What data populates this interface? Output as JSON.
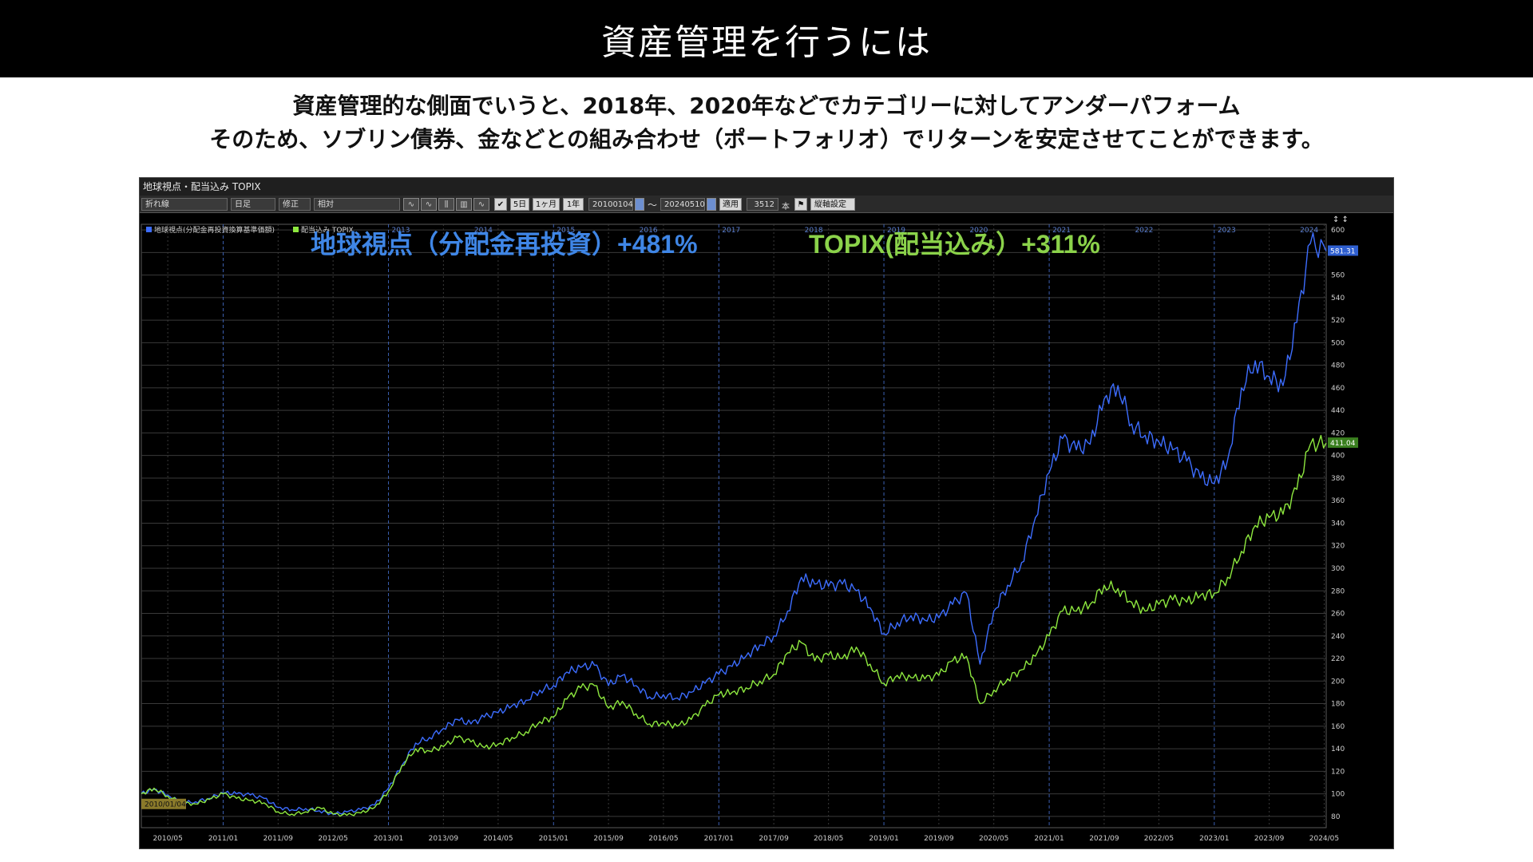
{
  "page": {
    "title": "資産管理を行うには",
    "description_lines": [
      "資産管理的な側面でいうと、2018年、2020年などでカテゴリーに対してアンダーパフォーム",
      "そのため、ソブリン債券、金などとの組み合わせ（ポートフォリオ）でリターンを安定させてことができます。"
    ]
  },
  "window": {
    "title": "地球視点・配当込み TOPIX",
    "toolbar": {
      "chart_style": "折れ線",
      "period_type": "日足",
      "adjust": "修正",
      "scale": "相対",
      "preset_5d": "5日",
      "preset_1m": "1ヶ月",
      "preset_1y": "1年",
      "start_date": "20100104",
      "tilde": "〜",
      "end_date": "20240510",
      "apply": "適用",
      "bar_count": "3512",
      "bar_unit": "本",
      "axis_settings": "縦軸設定"
    },
    "start_marker": "2010/01/04"
  },
  "annotations": {
    "fund_return": "地球視点（分配金再投資）+481%",
    "topix_return": "TOPIX(配当込み）+311%"
  },
  "colors": {
    "fund": "#3d6dff",
    "topix": "#8ee83f",
    "fund_label": "#3f86e6",
    "topix_label": "#8bd24a"
  },
  "chart_data": {
    "type": "line",
    "legend": [
      "地球視点(分配金再投資換算基準価額)",
      "配当込み TOPIX"
    ],
    "legend_position": "top-left",
    "x_range": [
      "2010-01-04",
      "2024-05-10"
    ],
    "y_range": [
      70,
      605
    ],
    "y_ticks": [
      80,
      100,
      120,
      140,
      160,
      180,
      200,
      220,
      240,
      260,
      280,
      300,
      320,
      340,
      360,
      380,
      400,
      420,
      440,
      460,
      480,
      500,
      520,
      540,
      560,
      580,
      600
    ],
    "top_year_ticks": [
      "2013",
      "2014",
      "2015",
      "2016",
      "2017",
      "2018",
      "2019",
      "2020",
      "2021",
      "2022",
      "2023",
      "2024"
    ],
    "bottom_date_ticks": [
      "2010/05",
      "2011/01",
      "2011/09",
      "2012/05",
      "2013/01",
      "2013/09",
      "2014/05",
      "2015/01",
      "2015/09",
      "2016/05",
      "2017/01",
      "2017/09",
      "2018/05",
      "2019/01",
      "2019/09",
      "2020/05",
      "2021/01",
      "2021/09",
      "2022/05",
      "2023/01",
      "2023/09",
      "2024/05"
    ],
    "grid": true,
    "last_values": {
      "fund": "581.31",
      "topix": "411.04"
    },
    "series": [
      {
        "name": "地球視点(分配金再投資換算基準価額)",
        "points": [
          [
            "2010-01-04",
            100
          ],
          [
            "2010-03-01",
            104
          ],
          [
            "2010-05-01",
            99
          ],
          [
            "2010-07-01",
            92
          ],
          [
            "2010-09-01",
            93
          ],
          [
            "2010-11-01",
            96
          ],
          [
            "2011-01-01",
            101
          ],
          [
            "2011-03-01",
            100
          ],
          [
            "2011-05-01",
            99
          ],
          [
            "2011-07-01",
            96
          ],
          [
            "2011-09-01",
            88
          ],
          [
            "2011-11-01",
            86
          ],
          [
            "2012-01-01",
            87
          ],
          [
            "2012-03-01",
            85
          ],
          [
            "2012-05-01",
            82
          ],
          [
            "2012-07-01",
            84
          ],
          [
            "2012-09-01",
            86
          ],
          [
            "2012-11-01",
            90
          ],
          [
            "2013-01-01",
            105
          ],
          [
            "2013-03-01",
            125
          ],
          [
            "2013-05-01",
            145
          ],
          [
            "2013-07-01",
            150
          ],
          [
            "2013-09-01",
            158
          ],
          [
            "2013-11-01",
            166
          ],
          [
            "2014-01-01",
            162
          ],
          [
            "2014-03-01",
            168
          ],
          [
            "2014-05-01",
            172
          ],
          [
            "2014-07-01",
            178
          ],
          [
            "2014-09-01",
            183
          ],
          [
            "2014-11-01",
            192
          ],
          [
            "2015-01-01",
            196
          ],
          [
            "2015-03-01",
            208
          ],
          [
            "2015-05-01",
            212
          ],
          [
            "2015-07-01",
            214
          ],
          [
            "2015-09-01",
            196
          ],
          [
            "2015-11-01",
            205
          ],
          [
            "2016-01-01",
            196
          ],
          [
            "2016-03-01",
            186
          ],
          [
            "2016-05-01",
            188
          ],
          [
            "2016-07-01",
            185
          ],
          [
            "2016-09-01",
            190
          ],
          [
            "2016-11-01",
            198
          ],
          [
            "2017-01-01",
            206
          ],
          [
            "2017-03-01",
            213
          ],
          [
            "2017-05-01",
            222
          ],
          [
            "2017-07-01",
            232
          ],
          [
            "2017-09-01",
            240
          ],
          [
            "2017-11-01",
            262
          ],
          [
            "2018-01-01",
            292
          ],
          [
            "2018-03-01",
            286
          ],
          [
            "2018-05-01",
            284
          ],
          [
            "2018-07-01",
            286
          ],
          [
            "2018-09-01",
            280
          ],
          [
            "2018-11-01",
            265
          ],
          [
            "2019-01-01",
            242
          ],
          [
            "2019-03-01",
            252
          ],
          [
            "2019-05-01",
            258
          ],
          [
            "2019-07-01",
            254
          ],
          [
            "2019-09-01",
            256
          ],
          [
            "2019-11-01",
            268
          ],
          [
            "2020-01-01",
            278
          ],
          [
            "2020-03-01",
            215
          ],
          [
            "2020-05-01",
            262
          ],
          [
            "2020-07-01",
            285
          ],
          [
            "2020-09-01",
            305
          ],
          [
            "2020-11-01",
            345
          ],
          [
            "2021-01-01",
            385
          ],
          [
            "2021-03-01",
            415
          ],
          [
            "2021-05-01",
            405
          ],
          [
            "2021-07-01",
            410
          ],
          [
            "2021-09-01",
            450
          ],
          [
            "2021-11-01",
            462
          ],
          [
            "2022-01-01",
            428
          ],
          [
            "2022-03-01",
            418
          ],
          [
            "2022-05-01",
            412
          ],
          [
            "2022-07-01",
            405
          ],
          [
            "2022-09-01",
            395
          ],
          [
            "2022-11-01",
            380
          ],
          [
            "2023-01-01",
            375
          ],
          [
            "2023-03-01",
            396
          ],
          [
            "2023-05-01",
            460
          ],
          [
            "2023-07-01",
            484
          ],
          [
            "2023-09-01",
            470
          ],
          [
            "2023-11-01",
            462
          ],
          [
            "2024-01-01",
            518
          ],
          [
            "2024-03-01",
            588
          ],
          [
            "2024-05-10",
            581.31
          ]
        ]
      },
      {
        "name": "配当込み TOPIX",
        "points": [
          [
            "2010-01-04",
            100
          ],
          [
            "2010-03-01",
            105
          ],
          [
            "2010-05-01",
            98
          ],
          [
            "2010-07-01",
            92
          ],
          [
            "2010-09-01",
            91
          ],
          [
            "2010-11-01",
            95
          ],
          [
            "2011-01-01",
            100
          ],
          [
            "2011-03-01",
            96
          ],
          [
            "2011-05-01",
            94
          ],
          [
            "2011-07-01",
            92
          ],
          [
            "2011-09-01",
            84
          ],
          [
            "2011-11-01",
            82
          ],
          [
            "2012-01-01",
            84
          ],
          [
            "2012-03-01",
            88
          ],
          [
            "2012-05-01",
            82
          ],
          [
            "2012-07-01",
            81
          ],
          [
            "2012-09-01",
            83
          ],
          [
            "2012-11-01",
            88
          ],
          [
            "2013-01-01",
            102
          ],
          [
            "2013-03-01",
            125
          ],
          [
            "2013-05-01",
            140
          ],
          [
            "2013-07-01",
            138
          ],
          [
            "2013-09-01",
            142
          ],
          [
            "2013-11-01",
            150
          ],
          [
            "2014-01-01",
            146
          ],
          [
            "2014-03-01",
            141
          ],
          [
            "2014-05-01",
            144
          ],
          [
            "2014-07-01",
            150
          ],
          [
            "2014-09-01",
            155
          ],
          [
            "2014-11-01",
            164
          ],
          [
            "2015-01-01",
            168
          ],
          [
            "2015-03-01",
            184
          ],
          [
            "2015-05-01",
            194
          ],
          [
            "2015-07-01",
            196
          ],
          [
            "2015-09-01",
            176
          ],
          [
            "2015-11-01",
            182
          ],
          [
            "2016-01-01",
            171
          ],
          [
            "2016-03-01",
            162
          ],
          [
            "2016-05-01",
            163
          ],
          [
            "2016-07-01",
            160
          ],
          [
            "2016-09-01",
            166
          ],
          [
            "2016-11-01",
            178
          ],
          [
            "2017-01-01",
            188
          ],
          [
            "2017-03-01",
            190
          ],
          [
            "2017-05-01",
            194
          ],
          [
            "2017-07-01",
            200
          ],
          [
            "2017-09-01",
            206
          ],
          [
            "2017-11-01",
            225
          ],
          [
            "2018-01-01",
            234
          ],
          [
            "2018-03-01",
            218
          ],
          [
            "2018-05-01",
            223
          ],
          [
            "2018-07-01",
            220
          ],
          [
            "2018-09-01",
            230
          ],
          [
            "2018-11-01",
            215
          ],
          [
            "2019-01-01",
            198
          ],
          [
            "2019-03-01",
            205
          ],
          [
            "2019-05-01",
            203
          ],
          [
            "2019-07-01",
            202
          ],
          [
            "2019-09-01",
            205
          ],
          [
            "2019-11-01",
            218
          ],
          [
            "2020-01-01",
            222
          ],
          [
            "2020-03-01",
            180
          ],
          [
            "2020-05-01",
            192
          ],
          [
            "2020-07-01",
            202
          ],
          [
            "2020-09-01",
            210
          ],
          [
            "2020-11-01",
            222
          ],
          [
            "2021-01-01",
            240
          ],
          [
            "2021-03-01",
            262
          ],
          [
            "2021-05-01",
            262
          ],
          [
            "2021-07-01",
            268
          ],
          [
            "2021-09-01",
            285
          ],
          [
            "2021-11-01",
            282
          ],
          [
            "2022-01-01",
            270
          ],
          [
            "2022-03-01",
            262
          ],
          [
            "2022-05-01",
            268
          ],
          [
            "2022-07-01",
            272
          ],
          [
            "2022-09-01",
            270
          ],
          [
            "2022-11-01",
            276
          ],
          [
            "2023-01-01",
            278
          ],
          [
            "2023-03-01",
            292
          ],
          [
            "2023-05-01",
            315
          ],
          [
            "2023-07-01",
            338
          ],
          [
            "2023-09-01",
            345
          ],
          [
            "2023-11-01",
            348
          ],
          [
            "2024-01-01",
            370
          ],
          [
            "2024-03-01",
            410
          ],
          [
            "2024-05-10",
            411.04
          ]
        ]
      }
    ]
  }
}
